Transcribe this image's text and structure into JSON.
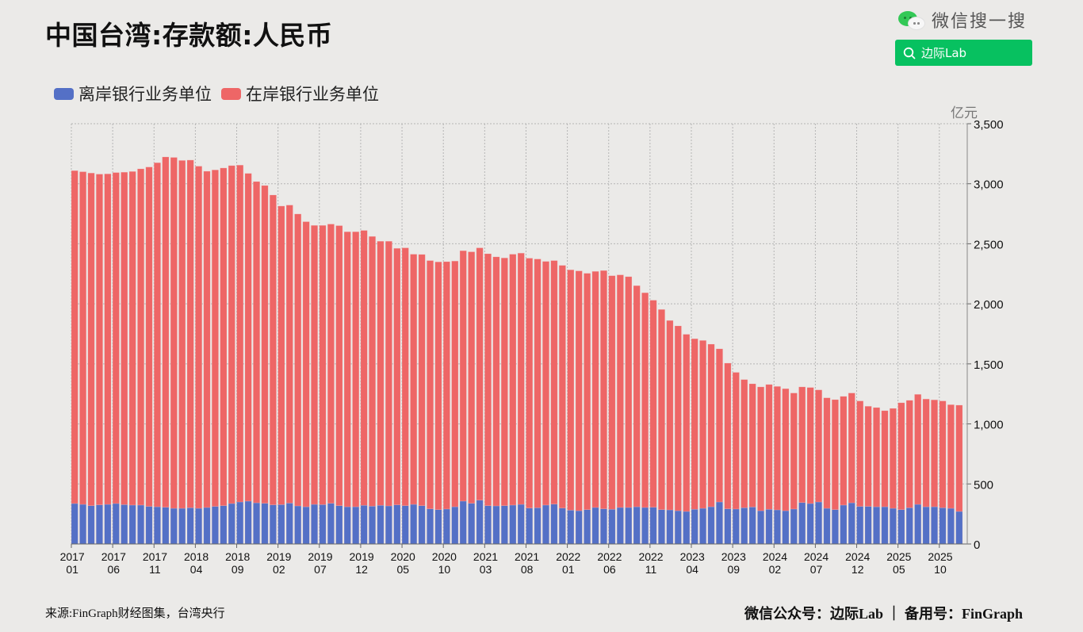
{
  "header": {
    "title": "中国台湾:存款额:人民币"
  },
  "brand": {
    "icon": "wechat-icon",
    "search_label": "微信搜一搜",
    "button_icon": "search-icon",
    "button_label": "边际Lab",
    "button_color": "#07c160"
  },
  "footer": {
    "source": "来源:FinGraph财经图集，台湾央行",
    "account": "微信公众号：边际Lab ｜ 备用号：FinGraph"
  },
  "chart_data": {
    "type": "bar",
    "stacked": true,
    "title": "中国台湾:存款额:人民币",
    "xlabel": "",
    "ylabel": "亿元",
    "ylim": [
      0,
      3500
    ],
    "yticks": [
      0,
      500,
      1000,
      1500,
      2000,
      2500,
      3000,
      3500
    ],
    "ytick_labels": [
      "0",
      "500",
      "1,000",
      "1,500",
      "2,000",
      "2,500",
      "3,000",
      "3,500"
    ],
    "y_axis_position": "right",
    "grid": true,
    "legend_position": "top-left",
    "start": "2017-01",
    "end": "2025-12",
    "xtick_labels": [
      [
        "2017",
        "01"
      ],
      [
        "2017",
        "06"
      ],
      [
        "2017",
        "11"
      ],
      [
        "2018",
        "04"
      ],
      [
        "2018",
        "09"
      ],
      [
        "2019",
        "02"
      ],
      [
        "2019",
        "07"
      ],
      [
        "2019",
        "12"
      ],
      [
        "2020",
        "05"
      ],
      [
        "2020",
        "10"
      ],
      [
        "2021",
        "03"
      ],
      [
        "2021",
        "08"
      ],
      [
        "2022",
        "01"
      ],
      [
        "2022",
        "06"
      ],
      [
        "2022",
        "11"
      ],
      [
        "2023",
        "04"
      ],
      [
        "2023",
        "09"
      ],
      [
        "2024",
        "02"
      ],
      [
        "2024",
        "07"
      ],
      [
        "2024",
        "12"
      ],
      [
        "2025",
        "05"
      ],
      [
        "2025",
        "10"
      ]
    ],
    "xtick_every_n_months": 5,
    "series": [
      {
        "name": "离岸银行业务单位",
        "color": "#5470c6",
        "values": [
          337,
          330,
          319,
          326,
          330,
          337,
          328,
          324,
          324,
          313,
          310,
          306,
          297,
          297,
          302,
          297,
          304,
          313,
          319,
          337,
          350,
          357,
          343,
          339,
          326,
          328,
          341,
          317,
          310,
          330,
          328,
          339,
          319,
          310,
          310,
          322,
          315,
          322,
          317,
          326,
          319,
          330,
          319,
          293,
          286,
          291,
          310,
          357,
          339,
          365,
          319,
          317,
          319,
          324,
          330,
          299,
          302,
          324,
          332,
          299,
          282,
          277,
          286,
          304,
          293,
          289,
          304,
          304,
          310,
          304,
          306,
          286,
          284,
          277,
          271,
          289,
          297,
          310,
          350,
          293,
          291,
          302,
          308,
          277,
          289,
          284,
          277,
          291,
          345,
          337,
          350,
          297,
          286,
          324,
          343,
          313,
          313,
          310,
          310,
          297,
          286,
          302,
          330,
          310,
          310,
          302,
          297,
          271
        ]
      },
      {
        "name": "在岸银行业务单位",
        "color": "#ee6666",
        "values": [
          2772,
          2770,
          2770,
          2754,
          2752,
          2756,
          2768,
          2778,
          2800,
          2826,
          2865,
          2917,
          2922,
          2897,
          2895,
          2849,
          2800,
          2802,
          2812,
          2814,
          2805,
          2729,
          2675,
          2646,
          2580,
          2486,
          2481,
          2431,
          2374,
          2323,
          2325,
          2325,
          2332,
          2290,
          2290,
          2289,
          2246,
          2199,
          2204,
          2136,
          2147,
          2083,
          2092,
          2067,
          2063,
          2060,
          2046,
          2085,
          2094,
          2101,
          2098,
          2074,
          2063,
          2089,
          2092,
          2081,
          2071,
          2029,
          2028,
          2021,
          2001,
          1997,
          1968,
          1966,
          1984,
          1945,
          1937,
          1922,
          1841,
          1788,
          1724,
          1667,
          1577,
          1539,
          1475,
          1420,
          1398,
          1354,
          1275,
          1213,
          1138,
          1067,
          1026,
          1031,
          1039,
          1028,
          1016,
          966,
          963,
          966,
          933,
          920,
          916,
          905,
          914,
          878,
          834,
          826,
          800,
          832,
          890,
          894,
          916,
          897,
          890,
          889,
          863,
          885
        ]
      }
    ],
    "totals": [
      3109,
      3100,
      3089,
      3080,
      3082,
      3093,
      3096,
      3102,
      3124,
      3139,
      3175,
      3223,
      3219,
      3199,
      3197,
      3146,
      3104,
      3115,
      3131,
      3151,
      3155,
      3086,
      3018,
      2985,
      2906,
      2814,
      2822,
      2748,
      2684,
      2653,
      2653,
      2664,
      2651,
      2600,
      2600,
      2611,
      2561,
      2521,
      2521,
      2462,
      2466,
      2413,
      2411,
      2360,
      2349,
      2351,
      2356,
      2442,
      2433,
      2466,
      2417,
      2391,
      2382,
      2413,
      2422,
      2380,
      2373,
      2353,
      2360,
      2320,
      2283,
      2274,
      2254,
      2270,
      2277,
      2234,
      2241,
      2226,
      2151,
      2092,
      2030,
      1953,
      1861,
      1816,
      1746,
      1709,
      1695,
      1664,
      1625,
      1506,
      1429,
      1369,
      1334,
      1308,
      1328,
      1312,
      1293,
      1257,
      1308,
      1303,
      1283,
      1217,
      1202,
      1229,
      1257,
      1191,
      1147,
      1136,
      1110,
      1129,
      1176,
      1196,
      1246,
      1207,
      1200,
      1191,
      1160,
      1156
    ]
  }
}
